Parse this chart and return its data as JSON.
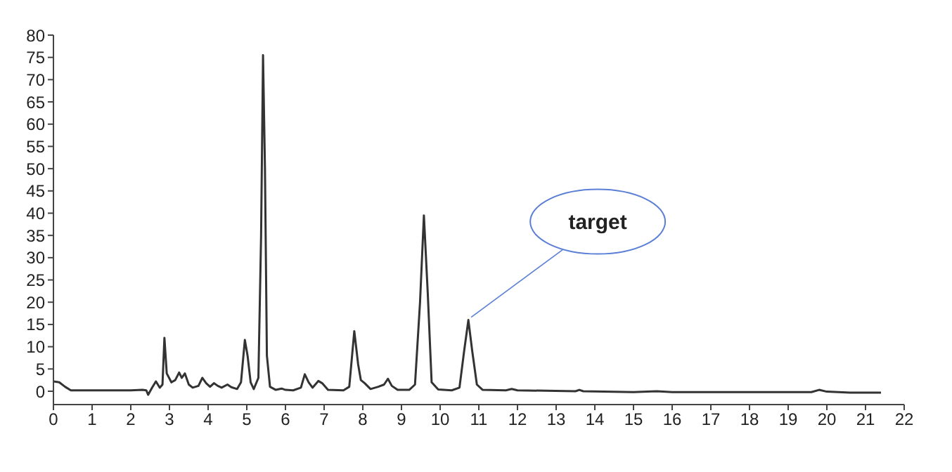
{
  "chart_data": {
    "type": "line",
    "xlim": [
      0,
      22
    ],
    "xticks": [
      0,
      1,
      2,
      3,
      4,
      5,
      6,
      7,
      8,
      9,
      10,
      11,
      12,
      13,
      14,
      15,
      16,
      17,
      18,
      19,
      20,
      21,
      22
    ],
    "ylim": [
      -3,
      80
    ],
    "yticks": [
      0,
      5,
      10,
      15,
      20,
      25,
      30,
      35,
      40,
      45,
      50,
      55,
      60,
      65,
      70,
      75,
      80
    ],
    "grid": false,
    "marker": "none",
    "line_style": "solid",
    "annotations": [
      {
        "text": "target",
        "x": 10.73,
        "y": 16
      }
    ],
    "series": [
      {
        "color": "#333333",
        "x": [
          0,
          0.15,
          0.3,
          0.45,
          1,
          2,
          2.3,
          2.4,
          2.45,
          2.55,
          2.65,
          2.75,
          2.82,
          2.87,
          2.93,
          3.05,
          3.15,
          3.25,
          3.32,
          3.4,
          3.5,
          3.6,
          3.75,
          3.85,
          3.95,
          4.05,
          4.15,
          4.25,
          4.35,
          4.5,
          4.6,
          4.75,
          4.85,
          4.95,
          5.02,
          5.1,
          5.18,
          5.3,
          5.37,
          5.42,
          5.47,
          5.52,
          5.6,
          5.75,
          5.9,
          6,
          6.2,
          6.4,
          6.5,
          6.6,
          6.7,
          6.85,
          6.95,
          7.1,
          7.5,
          7.65,
          7.78,
          7.88,
          7.95,
          8.05,
          8.2,
          8.4,
          8.55,
          8.65,
          8.75,
          8.9,
          9.2,
          9.35,
          9.48,
          9.58,
          9.68,
          9.78,
          9.95,
          10.3,
          10.5,
          10.62,
          10.73,
          10.83,
          10.95,
          11.1,
          11.7,
          11.85,
          12,
          13.5,
          13.6,
          13.7,
          15,
          15.6,
          16,
          19.6,
          19.8,
          20,
          20.6,
          21.4
        ],
        "values": [
          2.2,
          2,
          1,
          0.2,
          0.2,
          0.2,
          0.3,
          0.2,
          -0.8,
          0.8,
          2.2,
          0.8,
          1.5,
          12,
          4,
          2,
          2.5,
          4.2,
          3,
          4,
          1.5,
          0.8,
          1.2,
          3,
          1.8,
          1,
          1.8,
          1.2,
          0.8,
          1.5,
          0.9,
          0.5,
          2,
          11.5,
          8,
          2,
          0.5,
          3,
          35,
          75.5,
          50,
          8,
          1,
          0.3,
          0.6,
          0.3,
          0.2,
          0.8,
          3.8,
          2,
          0.8,
          2.3,
          1.8,
          0.3,
          0.2,
          1,
          13.5,
          6,
          2.5,
          1.8,
          0.5,
          1,
          1.5,
          2.8,
          1.2,
          0.3,
          0.3,
          1.5,
          20,
          39.5,
          22,
          2,
          0.4,
          0.2,
          0.8,
          9,
          16,
          9,
          1.5,
          0.3,
          0.2,
          0.5,
          0.2,
          0,
          0.3,
          0,
          -0.2,
          0,
          -0.2,
          -0.2,
          0.3,
          -0.1,
          -0.3,
          -0.3
        ]
      }
    ]
  }
}
